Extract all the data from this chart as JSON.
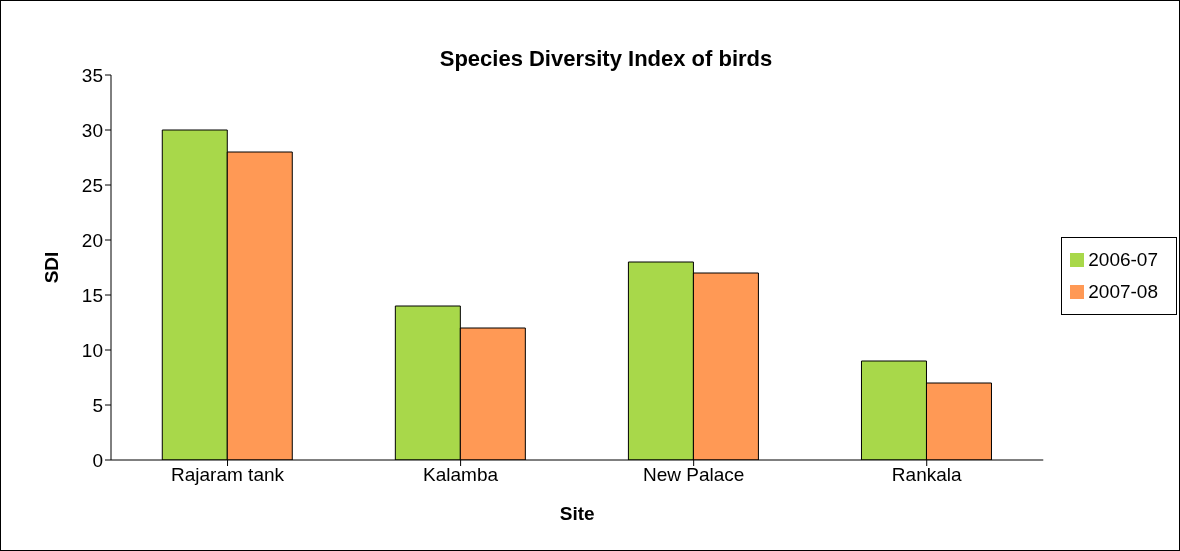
{
  "chart_data": {
    "type": "bar",
    "title": "Species Diversity Index of birds",
    "xlabel": "Site",
    "ylabel": "SDI",
    "categories": [
      "Rajaram tank",
      "Kalamba",
      "New Palace",
      "Rankala"
    ],
    "series": [
      {
        "name": "2006-07",
        "color": "#a8d84a",
        "values": [
          30,
          14,
          18,
          9
        ]
      },
      {
        "name": "2007-08",
        "color": "#ff9955",
        "values": [
          28,
          12,
          17,
          7
        ]
      }
    ],
    "ylim": [
      0,
      35
    ],
    "yticks": [
      0,
      5,
      10,
      15,
      20,
      25,
      30,
      35
    ],
    "grid": false,
    "legend": "right"
  }
}
